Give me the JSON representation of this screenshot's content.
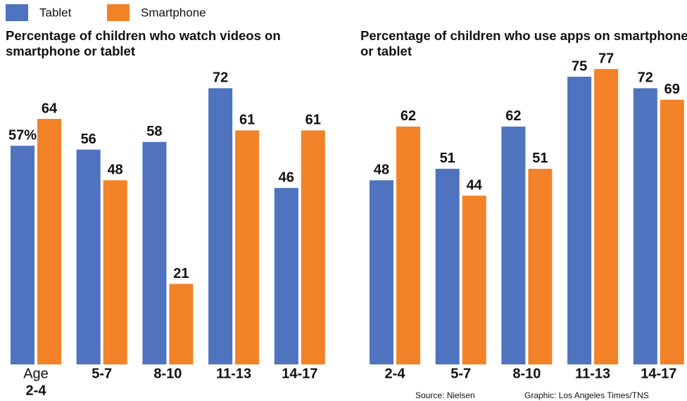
{
  "legend": [
    {
      "name": "Tablet",
      "color": "#4f73be"
    },
    {
      "name": "Smartphone",
      "color": "#f28227"
    }
  ],
  "chart_data": [
    {
      "type": "bar",
      "title": "Percentage of children who watch videos on smartphone or tablet",
      "category_prefix": "Age",
      "categories": [
        "2-4",
        "5-7",
        "8-10",
        "11-13",
        "14-17"
      ],
      "series": [
        {
          "color": "#4f73be",
          "values": [
            57,
            56,
            58,
            72,
            46
          ],
          "value_labels": [
            "57%",
            "56",
            "58",
            "72",
            "46"
          ]
        },
        {
          "color": "#f28227",
          "values": [
            64,
            48,
            21,
            61,
            61
          ]
        }
      ],
      "ylim": [
        0,
        95
      ]
    },
    {
      "type": "bar",
      "title": "Percentage of children who use apps on smartphone or tablet",
      "categories": [
        "2-4",
        "5-7",
        "8-10",
        "11-13",
        "14-17"
      ],
      "series": [
        {
          "color": "#4f73be",
          "values": [
            48,
            51,
            62,
            75,
            72
          ]
        },
        {
          "color": "#f28227",
          "values": [
            62,
            44,
            51,
            77,
            69
          ]
        }
      ],
      "ylim": [
        0,
        95
      ]
    }
  ],
  "footer": {
    "source": "Source: Nielsen",
    "credit": "Graphic: Los Angeles Times/TNS"
  }
}
